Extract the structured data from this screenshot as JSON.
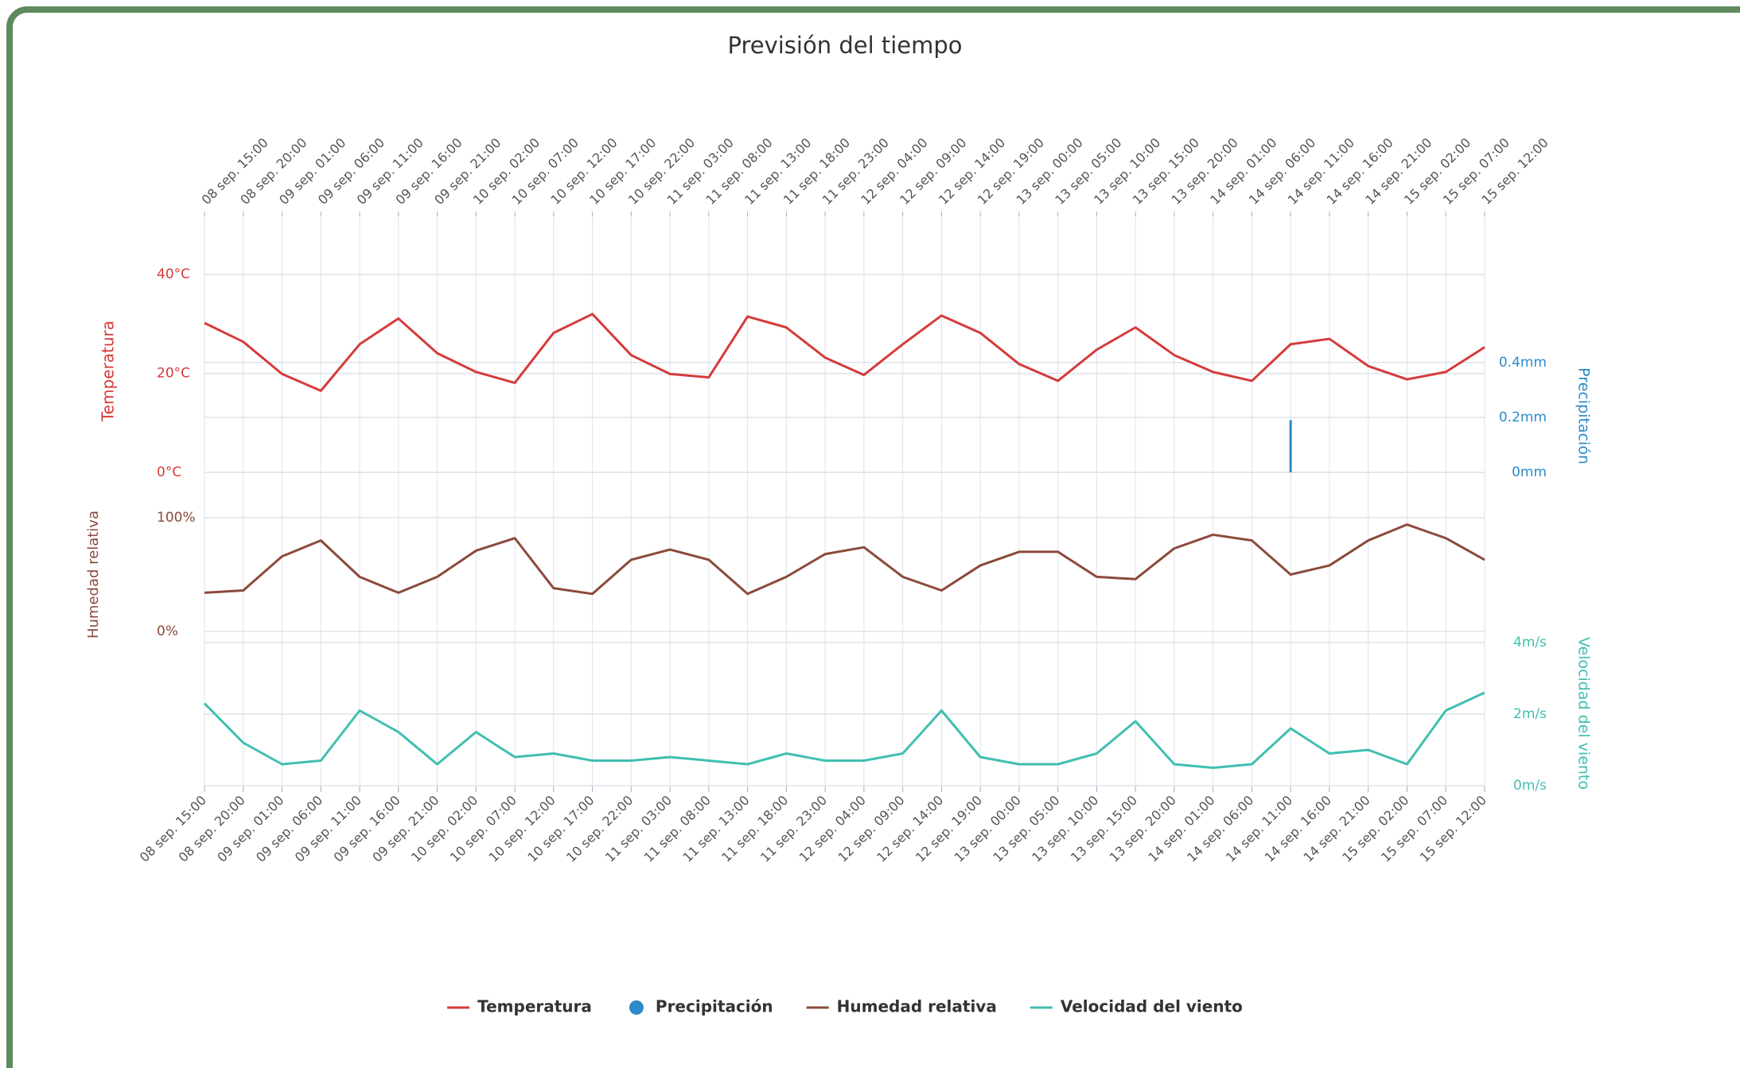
{
  "chart_data": [
    {
      "type": "line",
      "title": "Previsión del tiempo",
      "categories": [
        "08 sep. 15:00",
        "08 sep. 20:00",
        "09 sep. 01:00",
        "09 sep. 06:00",
        "09 sep. 11:00",
        "09 sep. 16:00",
        "09 sep. 21:00",
        "10 sep. 02:00",
        "10 sep. 07:00",
        "10 sep. 12:00",
        "10 sep. 17:00",
        "10 sep. 22:00",
        "11 sep. 03:00",
        "11 sep. 08:00",
        "11 sep. 13:00",
        "11 sep. 18:00",
        "11 sep. 23:00",
        "12 sep. 04:00",
        "12 sep. 09:00",
        "12 sep. 14:00",
        "12 sep. 19:00",
        "13 sep. 00:00",
        "13 sep. 05:00",
        "13 sep. 10:00",
        "13 sep. 15:00",
        "13 sep. 20:00",
        "14 sep. 01:00",
        "14 sep. 06:00",
        "14 sep. 11:00",
        "14 sep. 16:00",
        "14 sep. 21:00",
        "15 sep. 02:00",
        "15 sep. 07:00",
        "15 sep. 12:00"
      ],
      "y_label": "Temperatura",
      "y2_label": "Precipitación",
      "series": [
        {
          "name": "Temperatura",
          "color": "#d63b3b",
          "values": [
            30.2,
            26.4,
            19.9,
            16.5,
            25.9,
            31.1,
            24.1,
            20.3,
            18.1,
            28.2,
            32.0,
            23.7,
            19.9,
            19.2,
            31.5,
            29.3,
            23.2,
            19.7,
            25.9,
            31.7,
            28.2,
            21.9,
            18.5,
            24.8,
            29.3,
            23.7,
            20.3,
            18.5,
            25.9,
            27.0,
            21.5,
            18.8,
            20.3,
            25.3
          ]
        },
        {
          "name": "Precipitación",
          "type": "bar",
          "axis": "y2",
          "color": "#2e8bc9",
          "values": [
            0,
            0,
            0,
            0,
            0,
            0,
            0,
            0,
            0,
            0,
            0,
            0,
            0,
            0,
            0,
            0,
            0,
            0,
            0,
            0,
            0,
            0,
            0,
            0,
            0,
            0,
            0,
            0,
            0.19,
            0,
            0,
            0,
            0,
            0
          ]
        }
      ],
      "ylim": [
        0,
        50
      ],
      "yticks": [
        {
          "value": 0,
          "label": "0°C"
        },
        {
          "value": 20,
          "label": "20°C"
        },
        {
          "value": 40,
          "label": "40°C"
        }
      ],
      "y2lim": [
        0,
        0.9
      ],
      "y2ticks": [
        {
          "value": 0,
          "label": "0mm"
        },
        {
          "value": 0.2,
          "label": "0.2mm"
        },
        {
          "value": 0.4,
          "label": "0.4mm"
        }
      ],
      "grid": true
    },
    {
      "type": "line",
      "y_label": "Humedad relativa",
      "series": [
        {
          "name": "Humedad relativa",
          "color": "#8b4a3a",
          "values": [
            34,
            36,
            66,
            80,
            48,
            34,
            48,
            71,
            82,
            38,
            33,
            63,
            72,
            63,
            33,
            48,
            68,
            74,
            48,
            36,
            58,
            70,
            70,
            48,
            46,
            73,
            85,
            80,
            50,
            58,
            80,
            94,
            82,
            63
          ]
        }
      ],
      "ylim": [
        0,
        100
      ],
      "yticks": [
        {
          "value": 0,
          "label": "0%"
        },
        {
          "value": 100,
          "label": "100%"
        }
      ],
      "grid": true
    },
    {
      "type": "line",
      "y2_label": "Velocidad del viento",
      "categories": [
        "08 sep. 15:00",
        "08 sep. 20:00",
        "09 sep. 01:00",
        "09 sep. 06:00",
        "09 sep. 11:00",
        "09 sep. 16:00",
        "09 sep. 21:00",
        "10 sep. 02:00",
        "10 sep. 07:00",
        "10 sep. 12:00",
        "10 sep. 17:00",
        "10 sep. 22:00",
        "11 sep. 03:00",
        "11 sep. 08:00",
        "11 sep. 13:00",
        "11 sep. 18:00",
        "11 sep. 23:00",
        "12 sep. 04:00",
        "12 sep. 09:00",
        "12 sep. 14:00",
        "12 sep. 19:00",
        "13 sep. 00:00",
        "13 sep. 05:00",
        "13 sep. 10:00",
        "13 sep. 15:00",
        "13 sep. 20:00",
        "14 sep. 01:00",
        "14 sep. 06:00",
        "14 sep. 11:00",
        "14 sep. 16:00",
        "14 sep. 21:00",
        "15 sep. 02:00",
        "15 sep. 07:00",
        "15 sep. 12:00"
      ],
      "series": [
        {
          "name": "Velocidad del viento",
          "axis": "y2",
          "color": "#40bfb0",
          "values": [
            2.3,
            1.2,
            0.6,
            0.7,
            2.1,
            1.5,
            0.6,
            1.5,
            0.8,
            0.9,
            0.7,
            0.7,
            0.8,
            0.7,
            0.6,
            0.9,
            0.7,
            0.7,
            0.9,
            2.1,
            0.8,
            0.6,
            0.6,
            0.9,
            1.8,
            0.6,
            0.5,
            0.6,
            1.6,
            0.9,
            1.0,
            0.6,
            2.1,
            2.6
          ]
        }
      ],
      "y2lim": [
        0,
        4
      ],
      "y2ticks": [
        {
          "value": 0,
          "label": "0m/s"
        },
        {
          "value": 2,
          "label": "2m/s"
        },
        {
          "value": 4,
          "label": "4m/s"
        }
      ],
      "grid": true
    }
  ]
}
